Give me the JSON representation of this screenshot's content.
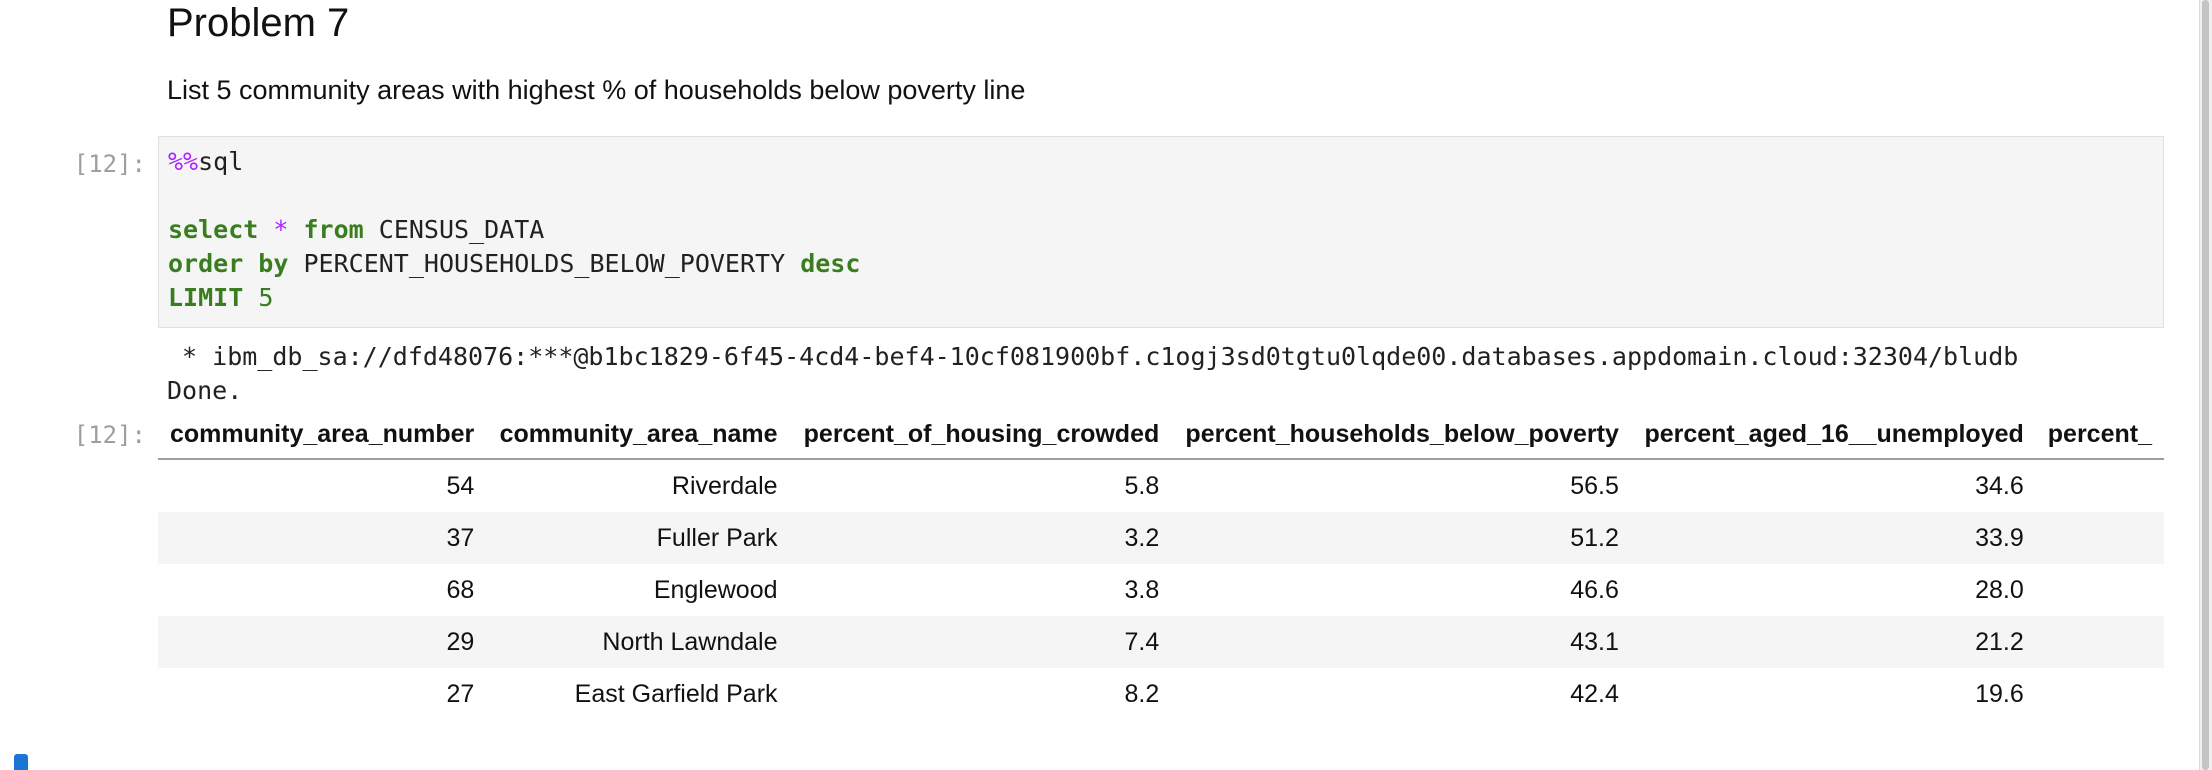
{
  "markdown": {
    "heading": "Problem 7",
    "description": "List 5 community areas with highest % of households below poverty line"
  },
  "code_cell": {
    "prompt": "[12]:",
    "magic_symbol": "%%",
    "magic_name": "sql",
    "kw_select": "select",
    "star": "*",
    "kw_from": "from",
    "table_name": "CENSUS_DATA",
    "kw_order_by": "order by",
    "order_column": "PERCENT_HOUSEHOLDS_BELOW_POVERTY",
    "kw_desc": "desc",
    "kw_limit": "LIMIT",
    "limit_value": "5"
  },
  "stdout": {
    "connection": " * ibm_db_sa://dfd48076:***@b1bc1829-6f45-4cd4-bef4-10cf081900bf.c1ogj3sd0tgtu0lqde00.databases.appdomain.cloud:32304/bludb",
    "status": "Done."
  },
  "output": {
    "prompt": "[12]:",
    "columns": [
      "community_area_number",
      "community_area_name",
      "percent_of_housing_crowded",
      "percent_households_below_poverty",
      "percent_aged_16__unemployed",
      "percent_"
    ],
    "rows": [
      [
        "54",
        "Riverdale",
        "5.8",
        "56.5",
        "34.6",
        ""
      ],
      [
        "37",
        "Fuller Park",
        "3.2",
        "51.2",
        "33.9",
        ""
      ],
      [
        "68",
        "Englewood",
        "3.8",
        "46.6",
        "28.0",
        ""
      ],
      [
        "29",
        "North Lawndale",
        "7.4",
        "43.1",
        "21.2",
        ""
      ],
      [
        "27",
        "East Garfield Park",
        "8.2",
        "42.4",
        "19.6",
        ""
      ]
    ]
  },
  "colors": {
    "keyword": "#3a7d1e",
    "operator": "#aa22ff",
    "prompt": "#9e9e9e",
    "collapser": "#1976d2"
  }
}
